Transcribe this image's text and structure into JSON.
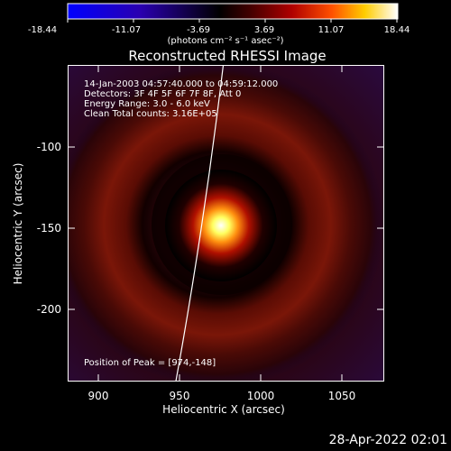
{
  "colorbar": {
    "ticks": [
      "-18.44",
      "-11.07",
      "-3.69",
      "3.69",
      "11.07",
      "18.44"
    ],
    "units": "(photons cm⁻² s⁻¹ asec⁻²)",
    "min": -18.44,
    "max": 18.44
  },
  "chart_data": {
    "type": "heatmap",
    "title": "Reconstructed RHESSI Image",
    "xlabel": "Heliocentric X (arcsec)",
    "ylabel": "Heliocentric Y (arcsec)",
    "xlim": [
      880,
      1075
    ],
    "ylim": [
      -245,
      -50
    ],
    "xticks": [
      "900",
      "950",
      "1000",
      "1050"
    ],
    "yticks": [
      "-100",
      "-150",
      "-200"
    ],
    "peak": {
      "x": 974,
      "y": -148
    },
    "annotations": {
      "time": "14-Jan-2003 04:57:40.000 to 04:59:12.000",
      "detectors": "Detectors: 3F 4F 5F 6F 7F 8F, Att 0",
      "energy": "Energy Range: 3.0 - 6.0 keV",
      "clean": "Clean    Total counts: 3.16E+05",
      "peak_position": "Position of Peak = [974,-148]"
    }
  },
  "timestamp": "28-Apr-2022 02:01",
  "colors": {
    "background": "#000000",
    "foreground": "#ffffff",
    "colormap": [
      "#0000ff",
      "#000000",
      "#ff0000",
      "#ffff00",
      "#ffffff"
    ]
  }
}
